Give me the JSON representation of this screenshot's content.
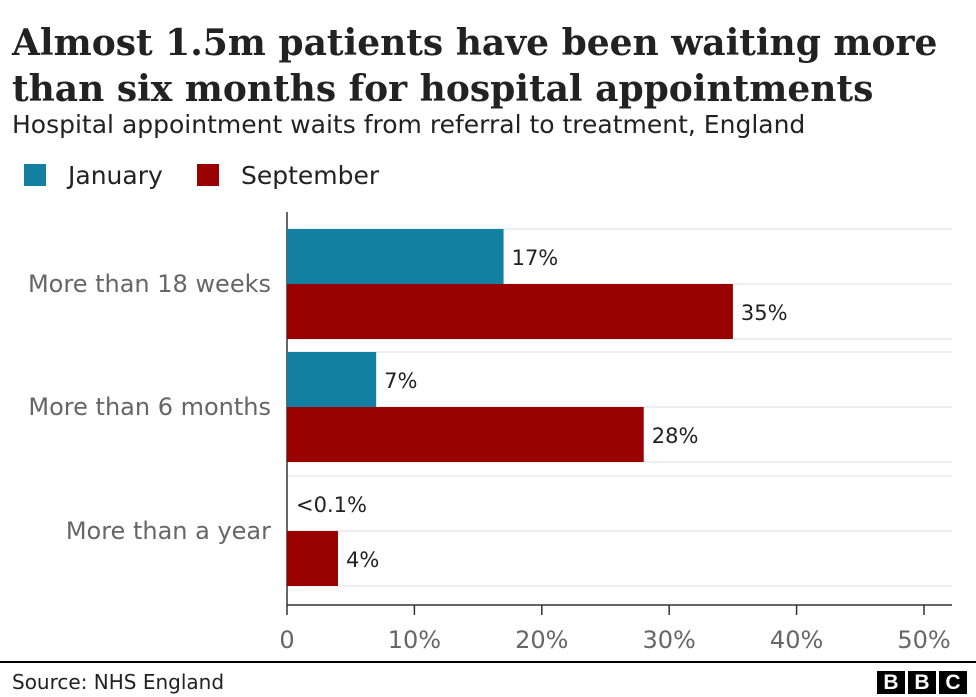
{
  "chart_data": {
    "type": "bar",
    "orientation": "horizontal",
    "title": "Almost 1.5m patients have been waiting more than six months for hospital appointments",
    "subtitle": "Hospital appointment waits from referral to treatment, England",
    "categories": [
      "More than 18 weeks",
      "More than 6 months",
      "More than a year"
    ],
    "series": [
      {
        "name": "January",
        "color": "#1380a1",
        "values": [
          17,
          7,
          0.1
        ],
        "labels": [
          "17%",
          "7%",
          "<0.1%"
        ]
      },
      {
        "name": "September",
        "color": "#990000",
        "values": [
          35,
          28,
          4
        ],
        "labels": [
          "35%",
          "28%",
          "4%"
        ]
      }
    ],
    "xlim": [
      0,
      50
    ],
    "ticks": [
      0,
      10,
      20,
      30,
      40,
      50
    ],
    "tick_labels": [
      "0",
      "10%",
      "20%",
      "30%",
      "40%",
      "50%"
    ],
    "grid": true,
    "legend_position": "top-left"
  },
  "footer": {
    "source": "Source: NHS England",
    "logo_text": "BBC"
  }
}
